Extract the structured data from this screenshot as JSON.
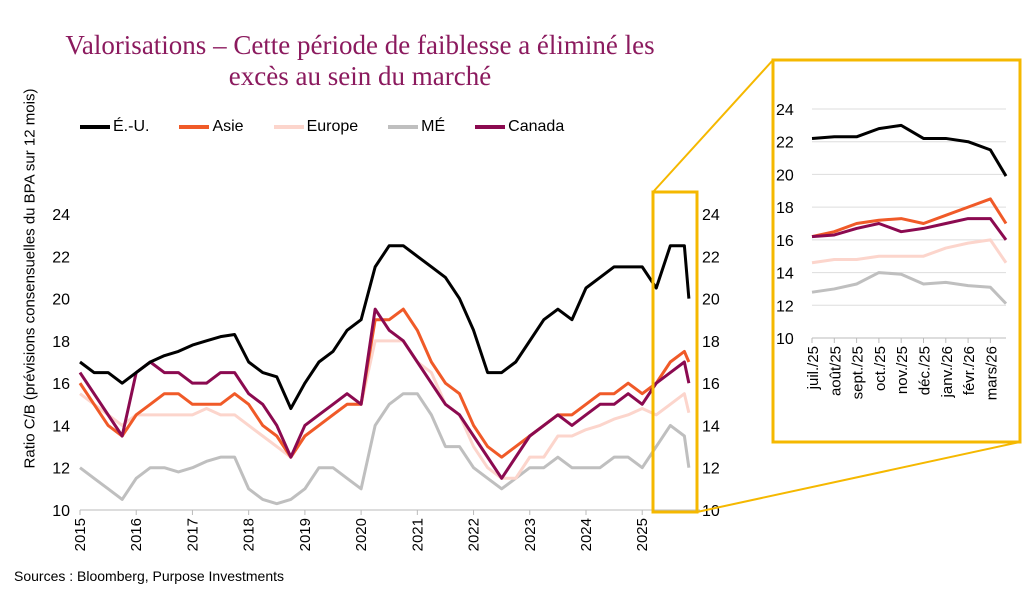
{
  "chart_data": [
    {
      "type": "line",
      "title": "Valorisations – Cette période de faiblesse a éliminé les excès au sein du marché",
      "ylabel": "Ratio C/B (prévisions consensuelles du BPA sur 12 mois)",
      "xlabel": "",
      "ylim": [
        10,
        24
      ],
      "yticks": [
        10,
        12,
        14,
        16,
        18,
        20,
        22,
        24
      ],
      "xticks": [
        "2015",
        "2016",
        "2017",
        "2018",
        "2019",
        "2020",
        "2021",
        "2022",
        "2023",
        "2024",
        "2025"
      ],
      "xlim": [
        2015,
        2025.85
      ],
      "grid": false,
      "legend_placement": "top",
      "x": [
        2015.0,
        2015.25,
        2015.5,
        2015.75,
        2016.0,
        2016.25,
        2016.5,
        2016.75,
        2017.0,
        2017.25,
        2017.5,
        2017.75,
        2018.0,
        2018.25,
        2018.5,
        2018.75,
        2019.0,
        2019.25,
        2019.5,
        2019.75,
        2020.0,
        2020.25,
        2020.5,
        2020.75,
        2021.0,
        2021.25,
        2021.5,
        2021.75,
        2022.0,
        2022.25,
        2022.5,
        2022.75,
        2023.0,
        2023.25,
        2023.5,
        2023.75,
        2024.0,
        2024.25,
        2024.5,
        2024.75,
        2025.0,
        2025.25,
        2025.5,
        2025.75,
        2025.83
      ],
      "series": [
        {
          "name": "É.-U.",
          "color": "#000000",
          "values": [
            17,
            16.5,
            16.5,
            16,
            16.5,
            17,
            17.3,
            17.5,
            17.8,
            18,
            18.2,
            18.3,
            17,
            16.5,
            16.3,
            14.8,
            16,
            17,
            17.5,
            18.5,
            19,
            21.5,
            22.5,
            22.5,
            22,
            21.5,
            21,
            20,
            18.5,
            16.5,
            16.5,
            17,
            18,
            19,
            19.5,
            19,
            20.5,
            21,
            21.5,
            21.5,
            21.5,
            20.5,
            22.5,
            22.5,
            20
          ]
        },
        {
          "name": "Asie",
          "color": "#F05A28",
          "values": [
            16,
            15,
            14,
            13.5,
            14.5,
            15,
            15.5,
            15.5,
            15,
            15,
            15,
            15.5,
            15,
            14,
            13.5,
            12.5,
            13.5,
            14,
            14.5,
            15,
            15,
            19,
            19,
            19.5,
            18.5,
            17,
            16,
            15.5,
            14,
            13,
            12.5,
            13,
            13.5,
            14,
            14.5,
            14.5,
            15,
            15.5,
            15.5,
            16,
            15.5,
            16,
            17,
            17.5,
            17
          ]
        },
        {
          "name": "Europe",
          "color": "#FCD5CC",
          "values": [
            15.5,
            15,
            14.5,
            14,
            14.5,
            14.5,
            14.5,
            14.5,
            14.5,
            14.8,
            14.5,
            14.5,
            14,
            13.5,
            13,
            12.5,
            13.5,
            14,
            14.5,
            15,
            15,
            18,
            18,
            18,
            17,
            16.5,
            15,
            14.5,
            13,
            12,
            11.5,
            11.5,
            12.5,
            12.5,
            13.5,
            13.5,
            13.8,
            14,
            14.3,
            14.5,
            14.8,
            14.5,
            15,
            15.5,
            14.6
          ]
        },
        {
          "name": "MÉ",
          "color": "#BFBFBF",
          "values": [
            12,
            11.5,
            11,
            10.5,
            11.5,
            12,
            12,
            11.8,
            12,
            12.3,
            12.5,
            12.5,
            11,
            10.5,
            10.3,
            10.5,
            11,
            12,
            12,
            11.5,
            11,
            14,
            15,
            15.5,
            15.5,
            14.5,
            13,
            13,
            12,
            11.5,
            11,
            11.5,
            12,
            12,
            12.5,
            12,
            12,
            12,
            12.5,
            12.5,
            12,
            13,
            14,
            13.5,
            12
          ]
        },
        {
          "name": "Canada",
          "color": "#8B0A50",
          "values": [
            16.5,
            15.5,
            14.5,
            13.5,
            16.5,
            17,
            16.5,
            16.5,
            16,
            16,
            16.5,
            16.5,
            15.5,
            15,
            14,
            12.5,
            14,
            14.5,
            15,
            15.5,
            15,
            19.5,
            18.5,
            18,
            17,
            16,
            15,
            14.5,
            13.5,
            12.5,
            11.5,
            12.5,
            13.5,
            14,
            14.5,
            14,
            14.5,
            15,
            15,
            15.5,
            15,
            16,
            16.5,
            17,
            16
          ]
        }
      ]
    },
    {
      "type": "line",
      "ylim": [
        10,
        24
      ],
      "yticks": [
        10,
        12,
        14,
        16,
        18,
        20,
        22,
        24
      ],
      "xticks": [
        "juil./25",
        "août/25",
        "sept./25",
        "oct./25",
        "nov./25",
        "déc./25",
        "janv./26",
        "févr./26",
        "mars/26"
      ],
      "grid": true,
      "x": [
        0,
        1,
        2,
        3,
        4,
        5,
        6,
        7,
        8,
        8.7
      ],
      "series": [
        {
          "name": "É.-U.",
          "color": "#000000",
          "values": [
            22.2,
            22.3,
            22.3,
            22.8,
            23,
            22.2,
            22.2,
            22,
            21.5,
            19.9
          ]
        },
        {
          "name": "Asie",
          "color": "#F05A28",
          "values": [
            16.2,
            16.5,
            17,
            17.2,
            17.3,
            17,
            17.5,
            18,
            18.5,
            17
          ]
        },
        {
          "name": "Europe",
          "color": "#FCD5CC",
          "values": [
            14.6,
            14.8,
            14.8,
            15,
            15,
            15,
            15.5,
            15.8,
            16,
            14.6
          ]
        },
        {
          "name": "MÉ",
          "color": "#BFBFBF",
          "values": [
            12.8,
            13,
            13.3,
            14,
            13.9,
            13.3,
            13.4,
            13.2,
            13.1,
            12.1
          ]
        },
        {
          "name": "Canada",
          "color": "#8B0A50",
          "values": [
            16.2,
            16.3,
            16.7,
            17,
            16.5,
            16.7,
            17,
            17.3,
            17.3,
            16
          ]
        }
      ]
    }
  ],
  "source": "Sources : Bloomberg, Purpose Investments",
  "highlight_color": "#F5B800",
  "title_color": "#8B1A5E"
}
